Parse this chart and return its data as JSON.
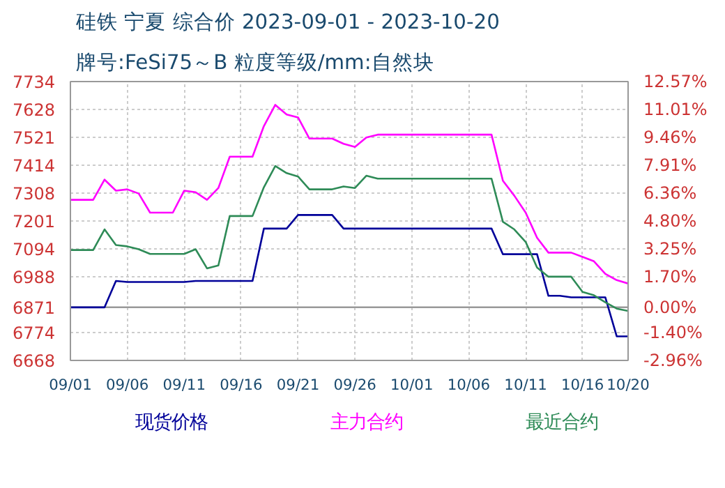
{
  "chart_data": {
    "type": "line",
    "title": "硅铁 宁夏 综合价 2023-09-01 - 2023-10-20",
    "subtitle": "牌号:FeSi75～B 粒度等级/mm:自然块",
    "x": [
      "2023-09-01",
      "2023-09-02",
      "2023-09-03",
      "2023-09-04",
      "2023-09-05",
      "2023-09-06",
      "2023-09-07",
      "2023-09-08",
      "2023-09-09",
      "2023-09-10",
      "2023-09-11",
      "2023-09-12",
      "2023-09-13",
      "2023-09-14",
      "2023-09-15",
      "2023-09-16",
      "2023-09-17",
      "2023-09-18",
      "2023-09-19",
      "2023-09-20",
      "2023-09-21",
      "2023-09-22",
      "2023-09-23",
      "2023-09-24",
      "2023-09-25",
      "2023-09-26",
      "2023-09-27",
      "2023-09-28",
      "2023-09-29",
      "2023-09-30",
      "2023-10-01",
      "2023-10-02",
      "2023-10-03",
      "2023-10-04",
      "2023-10-05",
      "2023-10-06",
      "2023-10-07",
      "2023-10-08",
      "2023-10-09",
      "2023-10-10",
      "2023-10-11",
      "2023-10-12",
      "2023-10-13",
      "2023-10-14",
      "2023-10-15",
      "2023-10-16",
      "2023-10-17",
      "2023-10-18",
      "2023-10-19",
      "2023-10-20"
    ],
    "series": [
      {
        "name": "现货价格",
        "color": "#000099",
        "values": [
          6871,
          6871,
          6871,
          6871,
          6972,
          6968,
          6968,
          6968,
          6968,
          6968,
          6968,
          6972,
          6972,
          6972,
          6972,
          6972,
          6972,
          7172,
          7172,
          7172,
          7224,
          7224,
          7224,
          7224,
          7172,
          7172,
          7172,
          7172,
          7172,
          7172,
          7172,
          7172,
          7172,
          7172,
          7172,
          7172,
          7172,
          7172,
          7074,
          7074,
          7074,
          7074,
          6915,
          6915,
          6909,
          6909,
          6909,
          6909,
          6760,
          6760
        ]
      },
      {
        "name": "主力合约",
        "color": "#ff00ff",
        "values": [
          7282,
          7282,
          7282,
          7359,
          7317,
          7322,
          7306,
          7233,
          7233,
          7233,
          7317,
          7311,
          7282,
          7327,
          7447,
          7447,
          7447,
          7564,
          7645,
          7608,
          7597,
          7516,
          7516,
          7516,
          7496,
          7484,
          7520,
          7531,
          7531,
          7531,
          7531,
          7531,
          7531,
          7531,
          7531,
          7531,
          7531,
          7531,
          7355,
          7298,
          7233,
          7137,
          7080,
          7080,
          7080,
          7064,
          7047,
          6999,
          6975,
          6962
        ]
      },
      {
        "name": "最近合约",
        "color": "#2e8b57",
        "values": [
          7090,
          7090,
          7090,
          7169,
          7109,
          7104,
          7093,
          7075,
          7075,
          7075,
          7075,
          7093,
          7020,
          7031,
          7220,
          7220,
          7220,
          7330,
          7411,
          7384,
          7371,
          7322,
          7322,
          7322,
          7333,
          7327,
          7374,
          7363,
          7363,
          7363,
          7363,
          7363,
          7363,
          7363,
          7363,
          7363,
          7363,
          7363,
          7198,
          7169,
          7121,
          7023,
          6988,
          6988,
          6988,
          6930,
          6917,
          6890,
          6866,
          6857
        ]
      }
    ],
    "xlim": [
      "2023-09-01",
      "2023-10-20"
    ],
    "xticks": [
      {
        "value": "2023-09-01",
        "label": "09/01"
      },
      {
        "value": "2023-09-06",
        "label": "09/06"
      },
      {
        "value": "2023-09-11",
        "label": "09/11"
      },
      {
        "value": "2023-09-16",
        "label": "09/16"
      },
      {
        "value": "2023-09-21",
        "label": "09/21"
      },
      {
        "value": "2023-09-26",
        "label": "09/26"
      },
      {
        "value": "2023-10-01",
        "label": "10/01"
      },
      {
        "value": "2023-10-06",
        "label": "10/06"
      },
      {
        "value": "2023-10-11",
        "label": "10/11"
      },
      {
        "value": "2023-10-16",
        "label": "10/16"
      },
      {
        "value": "2023-10-20",
        "label": "10/20"
      }
    ],
    "ylim": [
      6668,
      7734
    ],
    "yticks": [
      6668,
      6774,
      6871,
      6988,
      7094,
      7201,
      7308,
      7414,
      7521,
      7628,
      7734
    ],
    "y2lim": [
      -2.96,
      12.57
    ],
    "y2ticks": [
      {
        "value": -2.96,
        "label": "-2.96%"
      },
      {
        "value": -1.4,
        "label": "-1.40%"
      },
      {
        "value": 0,
        "label": "0.00%"
      },
      {
        "value": 1.7,
        "label": "1.70%"
      },
      {
        "value": 3.25,
        "label": "3.25%"
      },
      {
        "value": 4.8,
        "label": "4.80%"
      },
      {
        "value": 6.36,
        "label": "6.36%"
      },
      {
        "value": 7.91,
        "label": "7.91%"
      },
      {
        "value": 9.46,
        "label": "9.46%"
      },
      {
        "value": 11.01,
        "label": "11.01%"
      },
      {
        "value": 12.57,
        "label": "12.57%"
      }
    ],
    "ref_lines": [
      {
        "axis": "y2",
        "value": 0,
        "color": "#999999"
      }
    ],
    "grid": true,
    "legend": "bottom",
    "marker": "none",
    "line_style": "solid"
  }
}
